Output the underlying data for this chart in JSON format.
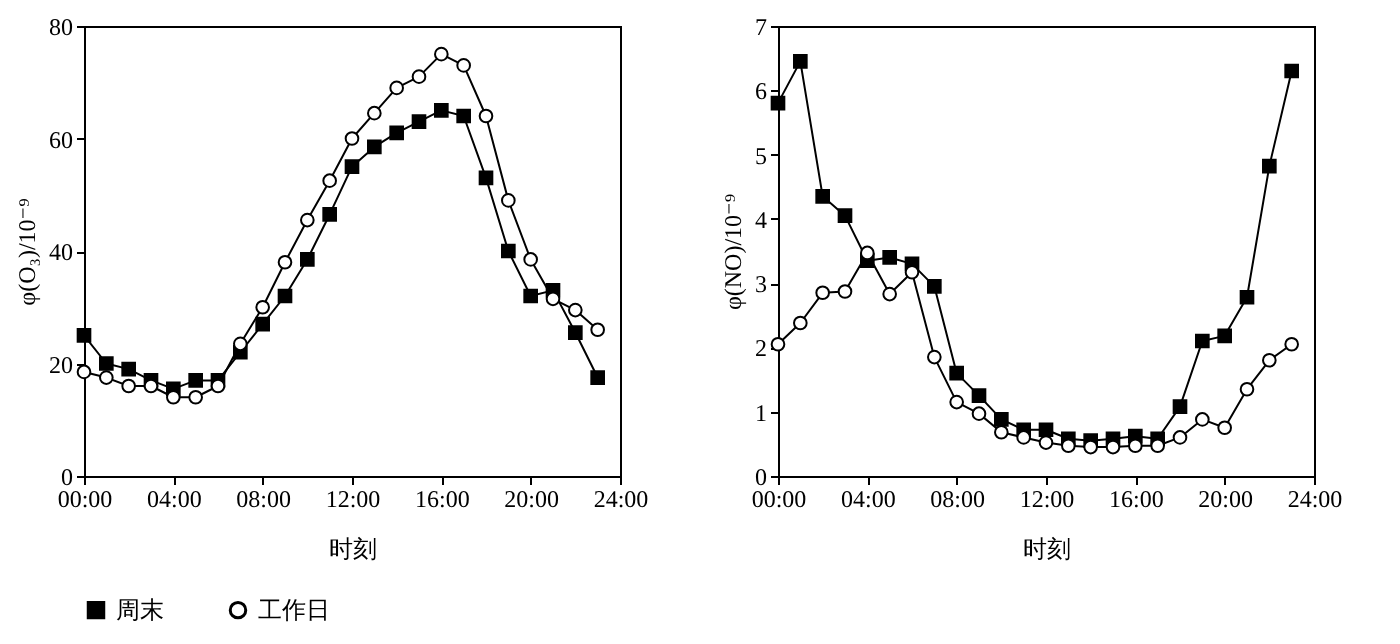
{
  "chart_data": [
    {
      "type": "line",
      "xlabel": "时刻",
      "ylabel": "φ(O₃)/10⁻⁹",
      "xlim": [
        0,
        24
      ],
      "ylim": [
        0,
        80
      ],
      "xticks": [
        {
          "value": 0,
          "label": "00:00"
        },
        {
          "value": 4,
          "label": "04:00"
        },
        {
          "value": 8,
          "label": "08:00"
        },
        {
          "value": 12,
          "label": "12:00"
        },
        {
          "value": 16,
          "label": "16:00"
        },
        {
          "value": 20,
          "label": "20:00"
        },
        {
          "value": 24,
          "label": "24:00"
        }
      ],
      "yticks": [
        0,
        20,
        40,
        60,
        80
      ],
      "grid": false,
      "legend": "bottom",
      "x": [
        0,
        1,
        2,
        3,
        4,
        5,
        6,
        7,
        8,
        9,
        10,
        11,
        12,
        13,
        14,
        15,
        16,
        17,
        18,
        19,
        20,
        21,
        22,
        23
      ],
      "series": [
        {
          "name": "周末",
          "color": "#000000",
          "marker": "square",
          "values": [
            25,
            20,
            19,
            17,
            15.5,
            17,
            17,
            22,
            27,
            32,
            38.5,
            46.5,
            55,
            58.5,
            61,
            63,
            65,
            64,
            53,
            40,
            32,
            33,
            25.5,
            17.5
          ]
        },
        {
          "name": "工作日",
          "color": "#ffffff",
          "marker": "circle",
          "values": [
            18.5,
            17.5,
            16,
            16,
            14,
            14,
            16,
            23.5,
            30,
            38,
            45.5,
            52.5,
            60,
            64.5,
            69,
            71,
            75,
            73,
            64,
            49,
            38.5,
            31.5,
            29.5,
            26
          ]
        }
      ]
    },
    {
      "type": "line",
      "xlabel": "时刻",
      "ylabel": "φ(NO)/10⁻⁹",
      "xlim": [
        0,
        24
      ],
      "ylim": [
        0,
        7
      ],
      "xticks": [
        {
          "value": 0,
          "label": "00:00"
        },
        {
          "value": 4,
          "label": "04:00"
        },
        {
          "value": 8,
          "label": "08:00"
        },
        {
          "value": 12,
          "label": "12:00"
        },
        {
          "value": 16,
          "label": "16:00"
        },
        {
          "value": 20,
          "label": "20:00"
        },
        {
          "value": 24,
          "label": "24:00"
        }
      ],
      "yticks": [
        0,
        1,
        2,
        3,
        4,
        5,
        6,
        7
      ],
      "grid": false,
      "legend": "bottom",
      "x": [
        0,
        1,
        2,
        3,
        4,
        5,
        6,
        7,
        8,
        9,
        10,
        11,
        12,
        13,
        14,
        15,
        16,
        17,
        18,
        19,
        20,
        21,
        22,
        23
      ],
      "series": [
        {
          "name": "周末",
          "color": "#000000",
          "marker": "square",
          "values": [
            5.8,
            6.45,
            4.35,
            4.05,
            3.35,
            3.4,
            3.3,
            2.95,
            1.6,
            1.25,
            0.88,
            0.72,
            0.72,
            0.58,
            0.55,
            0.58,
            0.62,
            0.58,
            1.08,
            2.1,
            2.18,
            2.78,
            4.82,
            6.3
          ]
        },
        {
          "name": "工作日",
          "color": "#ffffff",
          "marker": "circle",
          "values": [
            2.05,
            2.38,
            2.85,
            2.87,
            3.47,
            2.83,
            3.17,
            1.85,
            1.15,
            0.97,
            0.68,
            0.6,
            0.52,
            0.47,
            0.45,
            0.45,
            0.47,
            0.47,
            0.6,
            0.88,
            0.75,
            1.35,
            1.8,
            2.05
          ]
        }
      ]
    }
  ]
}
